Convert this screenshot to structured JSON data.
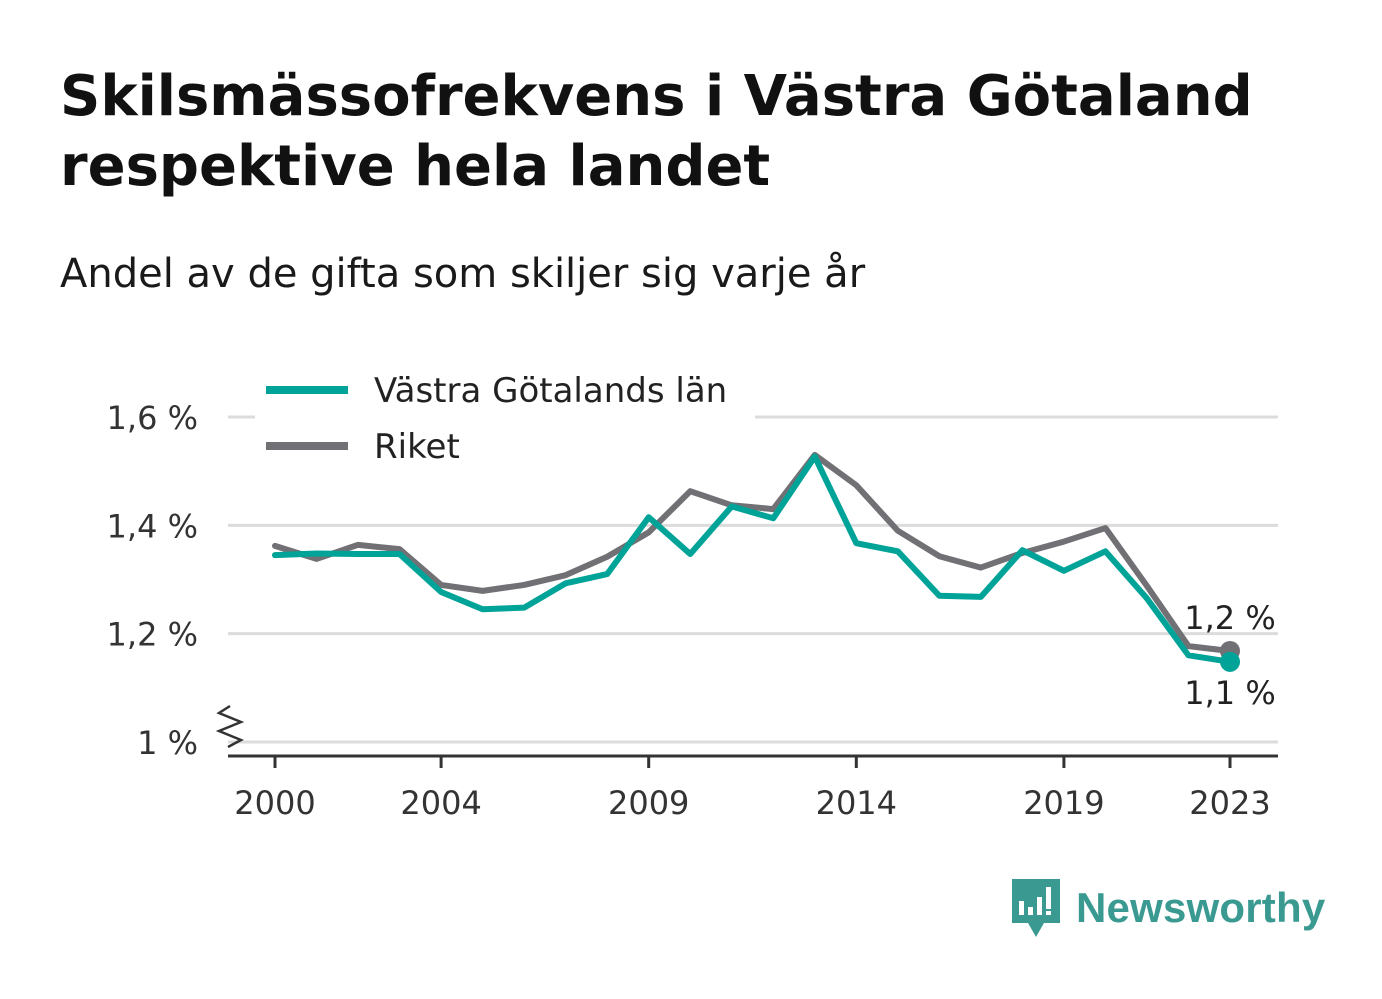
{
  "title": "Skilsmässofrekvens i Västra Götaland respektive hela landet",
  "subtitle": "Andel av de gifta som skiljer sig varje år",
  "brand": {
    "name": "Newsworthy",
    "icon": "newsworthy-logo-icon",
    "color": "#3a9a92"
  },
  "chart_data": {
    "type": "line",
    "x": [
      2000,
      2001,
      2002,
      2003,
      2004,
      2005,
      2006,
      2007,
      2008,
      2009,
      2010,
      2011,
      2012,
      2013,
      2014,
      2015,
      2016,
      2017,
      2018,
      2019,
      2020,
      2021,
      2022,
      2023
    ],
    "series": [
      {
        "name": "Västra Götalands län",
        "color": "#00a398",
        "values": [
          1.345,
          1.348,
          1.347,
          1.347,
          1.277,
          1.245,
          1.248,
          1.293,
          1.31,
          1.415,
          1.347,
          1.435,
          1.413,
          1.527,
          1.367,
          1.352,
          1.27,
          1.268,
          1.354,
          1.316,
          1.352,
          1.265,
          1.16,
          1.148
        ],
        "end_label": "1,1 %"
      },
      {
        "name": "Riket",
        "color": "#717075",
        "values": [
          1.362,
          1.338,
          1.364,
          1.356,
          1.29,
          1.279,
          1.29,
          1.308,
          1.342,
          1.387,
          1.463,
          1.437,
          1.43,
          1.53,
          1.474,
          1.39,
          1.343,
          1.322,
          1.349,
          1.37,
          1.395,
          1.288,
          1.177,
          1.168
        ],
        "end_label": "1,2 %"
      }
    ],
    "x_ticks": [
      2000,
      2004,
      2009,
      2014,
      2019,
      2023
    ],
    "x_tick_labels": [
      "2000",
      "2004",
      "2009",
      "2014",
      "2019",
      "2023"
    ],
    "y_ticks": [
      1.0,
      1.2,
      1.4,
      1.6
    ],
    "y_tick_labels": [
      "1 %",
      "1,2 %",
      "1,4 %",
      "1,6 %"
    ],
    "ylim": [
      1.0,
      1.6
    ],
    "xlim": [
      2000,
      2023
    ],
    "grid": true,
    "y_axis_break": true,
    "legend_position": "top-left"
  }
}
